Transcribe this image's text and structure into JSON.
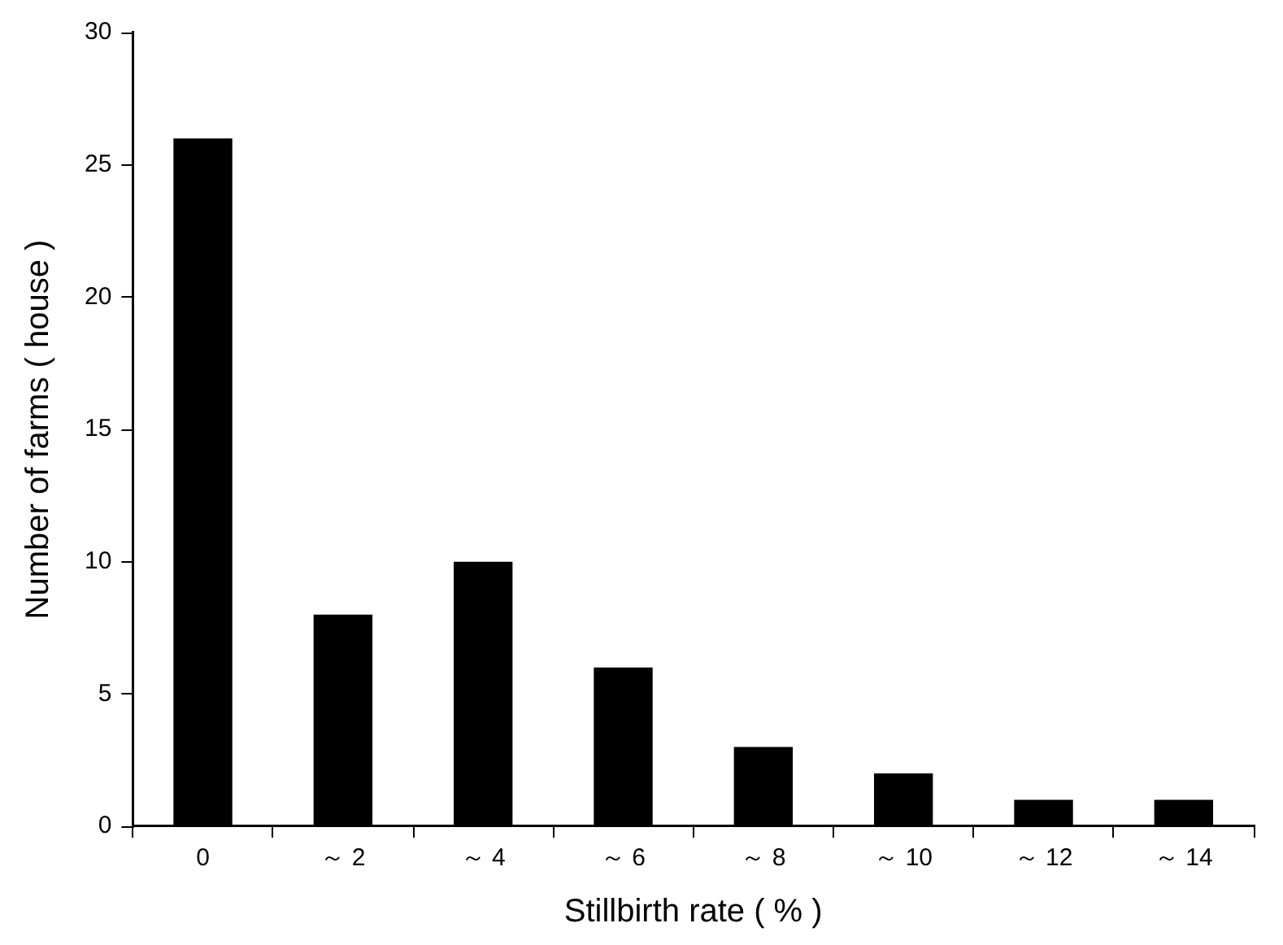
{
  "chart_data": {
    "type": "bar",
    "xlabel": "Stillbirth rate ( % )",
    "ylabel": "Number of farms ( house )",
    "categories": [
      "0",
      "～ 2",
      "～ 4",
      "～ 6",
      "～ 8",
      "～ 10",
      "～ 12",
      "～ 14"
    ],
    "values": [
      26,
      8,
      10,
      6,
      3,
      2,
      1,
      1
    ],
    "color": "#000000",
    "ylim": [
      0,
      30
    ],
    "yticks": [
      0,
      5,
      10,
      15,
      20,
      25,
      30
    ],
    "grid": false,
    "legend": false
  }
}
